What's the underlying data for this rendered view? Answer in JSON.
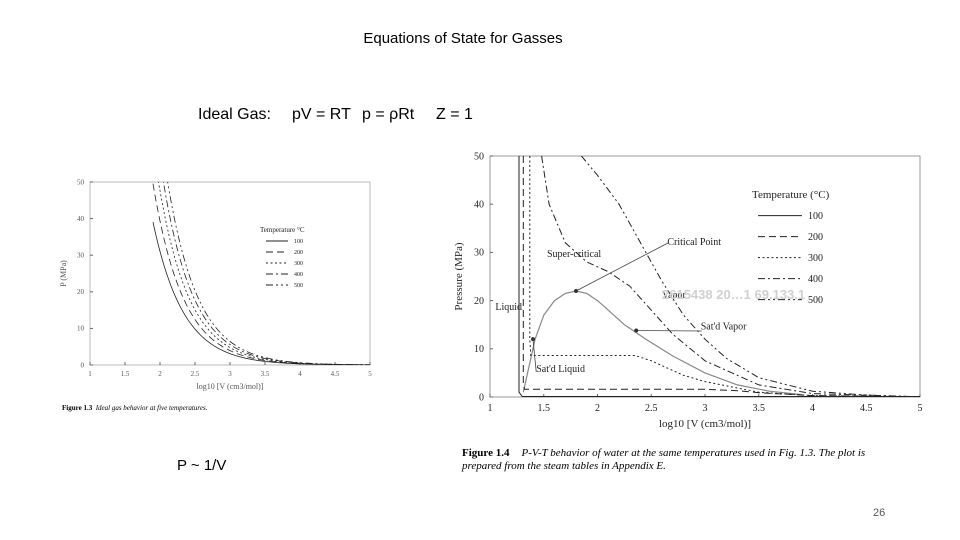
{
  "slide": {
    "title": "Equations of State for Gasses",
    "ideal_gas_label": "Ideal Gas:",
    "equation_1": "pV = RT",
    "equation_2": "p = ρRt",
    "equation_3": "Z = 1",
    "pv_note": "P ~ 1/V",
    "page_number": "26",
    "watermark": "2615438 20…1 69.133.1"
  },
  "figure_1": {
    "caption_number": "Figure 1.3",
    "caption_text": "Ideal gas behavior at five temperatures."
  },
  "figure_2": {
    "caption_number": "Figure 1.4",
    "caption_text": "P-V-T behavior of water at the same temperatures used in Fig. 1.3. The plot is prepared from the steam tables in Appendix E."
  },
  "chart_data": [
    {
      "type": "line",
      "title": "",
      "xlabel": "log10 [V (cm3/mol)]",
      "ylabel": "P (MPa)",
      "xlim": [
        1,
        5
      ],
      "ylim": [
        0,
        50
      ],
      "xticks": [
        "1",
        "1.5",
        "2",
        "2.5",
        "3",
        "3.5",
        "4",
        "4.5",
        "5"
      ],
      "yticks": [
        "0",
        "10",
        "20",
        "30",
        "40",
        "50"
      ],
      "grid": false,
      "legend_title": "Temperature °C",
      "legend_position": "right",
      "series": [
        {
          "name": "100",
          "dash": "solid",
          "gas_constant_T": 3103
        },
        {
          "name": "200",
          "dash": "dash",
          "gas_constant_T": 3934
        },
        {
          "name": "300",
          "dash": "dot",
          "gas_constant_T": 4765
        },
        {
          "name": "400",
          "dash": "dashdot",
          "gas_constant_T": 5597
        },
        {
          "name": "500",
          "dash": "dashdotdot",
          "gas_constant_T": 6428
        }
      ]
    },
    {
      "type": "line",
      "title": "",
      "xlabel": "log10 [V (cm3/mol)]",
      "ylabel": "Pressure (MPa)",
      "xlim": [
        1,
        5
      ],
      "ylim": [
        0,
        50
      ],
      "xticks": [
        "1",
        "1.5",
        "2",
        "2.5",
        "3",
        "3.5",
        "4",
        "4.5",
        "5"
      ],
      "yticks": [
        "0",
        "10",
        "20",
        "30",
        "40",
        "50"
      ],
      "grid": false,
      "legend_title": "Temperature (°C)",
      "legend_position": "right",
      "annotations": [
        "Critical Point",
        "Super-critical",
        "Liquid",
        "Vapor",
        "Sat'd Vapor",
        "Sat'd Liquid"
      ],
      "dome": {
        "x": [
          1.31,
          1.35,
          1.42,
          1.5,
          1.6,
          1.7,
          1.8,
          1.9,
          2.0,
          2.1,
          2.25,
          2.45,
          2.7,
          3.0,
          3.3,
          3.6,
          3.9
        ],
        "y": [
          1,
          5,
          12,
          17,
          20,
          21.5,
          22,
          21.5,
          20,
          18,
          15,
          12,
          8.5,
          5,
          2.5,
          1.2,
          0.5
        ]
      },
      "series": [
        {
          "name": "100",
          "dash": "solid",
          "x": [
            1.27,
            1.27,
            1.3,
            1.35,
            1.5,
            2.0,
            2.5,
            3.0,
            3.5,
            4.0,
            5.0
          ],
          "y": [
            50,
            1,
            0.1,
            0.1,
            0.1,
            0.1,
            0.1,
            0.1,
            0.1,
            0.1,
            0.1
          ]
        },
        {
          "name": "200",
          "dash": "dash",
          "x": [
            1.31,
            1.31,
            1.32,
            2.0,
            2.5,
            3.0,
            3.3,
            3.5,
            4.0,
            5.0
          ],
          "y": [
            50,
            3,
            1.6,
            1.6,
            1.6,
            1.6,
            1.3,
            0.9,
            0.3,
            0.05
          ]
        },
        {
          "name": "300",
          "dash": "dot",
          "x": [
            1.37,
            1.37,
            1.38,
            2.0,
            2.35,
            2.5,
            2.8,
            3.0,
            3.5,
            4.0,
            5.0
          ],
          "y": [
            50,
            12,
            8.6,
            8.6,
            8.6,
            7.5,
            4.5,
            3.2,
            1.0,
            0.3,
            0.05
          ]
        },
        {
          "name": "400",
          "dash": "dashdot",
          "x": [
            1.48,
            1.55,
            1.7,
            1.9,
            2.1,
            2.3,
            2.5,
            2.7,
            3.0,
            3.5,
            4.0,
            5.0
          ],
          "y": [
            50,
            40,
            32,
            28,
            26,
            23,
            18,
            13,
            7.5,
            2.5,
            0.7,
            0.05
          ]
        },
        {
          "name": "500",
          "dash": "dashdotdot",
          "x": [
            1.85,
            2.0,
            2.2,
            2.4,
            2.6,
            2.8,
            3.0,
            3.2,
            3.5,
            4.0,
            4.5,
            5.0
          ],
          "y": [
            50,
            46,
            40,
            32,
            24,
            17,
            12,
            8,
            4,
            1.2,
            0.4,
            0.05
          ]
        }
      ]
    }
  ]
}
